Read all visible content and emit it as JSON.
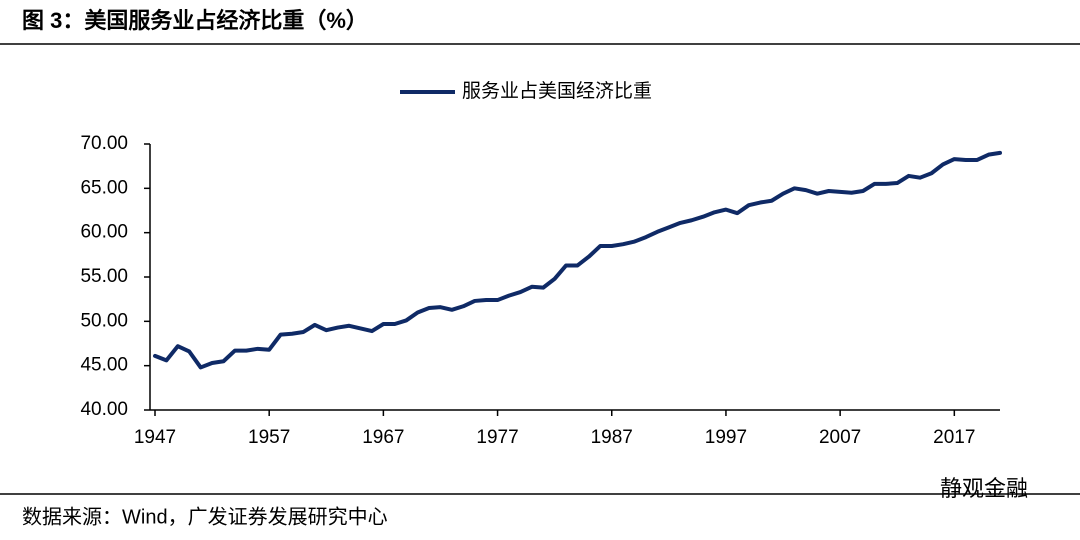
{
  "chart_data": {
    "type": "line",
    "title": "图 3：美国服务业占经济比重（%）",
    "source": "数据来源：Wind，广发证券发展研究中心",
    "watermark": "静观金融",
    "x": [
      1947,
      1948,
      1949,
      1950,
      1951,
      1952,
      1953,
      1954,
      1955,
      1956,
      1957,
      1958,
      1959,
      1960,
      1961,
      1962,
      1963,
      1964,
      1965,
      1966,
      1967,
      1968,
      1969,
      1970,
      1971,
      1972,
      1973,
      1974,
      1975,
      1976,
      1977,
      1978,
      1979,
      1980,
      1981,
      1982,
      1983,
      1984,
      1985,
      1986,
      1987,
      1988,
      1989,
      1990,
      1991,
      1992,
      1993,
      1994,
      1995,
      1996,
      1997,
      1998,
      1999,
      2000,
      2001,
      2002,
      2003,
      2004,
      2005,
      2006,
      2007,
      2008,
      2009,
      2010,
      2011,
      2012,
      2013,
      2014,
      2015,
      2016,
      2017,
      2018,
      2019,
      2020,
      2021
    ],
    "series": [
      {
        "name": "服务业占美国经济比重",
        "color": "#0f2a66",
        "values": [
          46.1,
          45.6,
          47.2,
          46.6,
          44.8,
          45.3,
          45.5,
          46.7,
          46.7,
          46.9,
          46.8,
          48.5,
          48.6,
          48.8,
          49.6,
          49.0,
          49.3,
          49.5,
          49.2,
          48.9,
          49.7,
          49.7,
          50.1,
          51.0,
          51.5,
          51.6,
          51.3,
          51.7,
          52.3,
          52.4,
          52.4,
          52.9,
          53.3,
          53.9,
          53.8,
          54.8,
          56.3,
          56.3,
          57.3,
          58.5,
          58.5,
          58.7,
          59.0,
          59.5,
          60.1,
          60.6,
          61.1,
          61.4,
          61.8,
          62.3,
          62.6,
          62.2,
          63.1,
          63.4,
          63.6,
          64.4,
          65.0,
          64.8,
          64.4,
          64.7,
          64.6,
          64.5,
          64.7,
          65.5,
          65.5,
          65.6,
          66.4,
          66.2,
          66.7,
          67.7,
          68.3,
          68.2,
          68.2,
          68.8,
          69.0
        ]
      }
    ],
    "xlim": [
      1947,
      2021
    ],
    "xticks": [
      1947,
      1957,
      1967,
      1977,
      1987,
      1997,
      2007,
      2017
    ],
    "ylim": [
      40,
      70
    ],
    "yticks": [
      {
        "value": 40,
        "label": "40.00"
      },
      {
        "value": 45,
        "label": "45.00"
      },
      {
        "value": 50,
        "label": "50.00"
      },
      {
        "value": 55,
        "label": "55.00"
      },
      {
        "value": 60,
        "label": "60.00"
      },
      {
        "value": 65,
        "label": "65.00"
      },
      {
        "value": 70,
        "label": "70.00"
      }
    ],
    "legend": "top"
  }
}
